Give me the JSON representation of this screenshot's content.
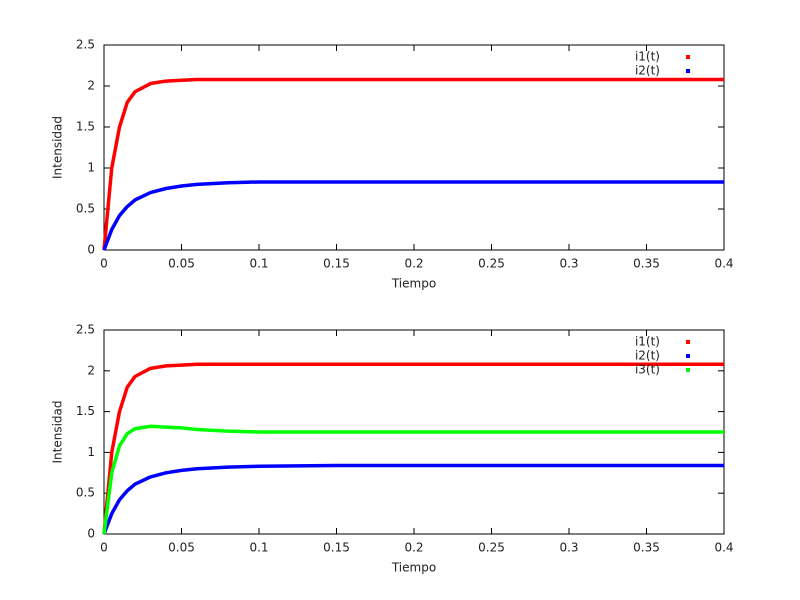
{
  "chart_data": [
    {
      "type": "line",
      "xlabel": "Tiempo",
      "ylabel": "Intensidad",
      "x": [
        0,
        0.005,
        0.01,
        0.015,
        0.02,
        0.03,
        0.04,
        0.05,
        0.06,
        0.08,
        0.1,
        0.15,
        0.2,
        0.3,
        0.4
      ],
      "series": [
        {
          "name": "i1(t)",
          "color": "#ff0000",
          "values": [
            0,
            1.0,
            1.5,
            1.8,
            1.93,
            2.03,
            2.06,
            2.07,
            2.08,
            2.08,
            2.08,
            2.08,
            2.08,
            2.08,
            2.08
          ]
        },
        {
          "name": "i2(t)",
          "color": "#0000ff",
          "values": [
            0,
            0.25,
            0.42,
            0.53,
            0.61,
            0.7,
            0.75,
            0.78,
            0.8,
            0.82,
            0.83,
            0.83,
            0.83,
            0.83,
            0.83
          ]
        }
      ],
      "xlim": [
        0,
        0.4
      ],
      "xticks": [
        0,
        0.05,
        0.1,
        0.15,
        0.2,
        0.25,
        0.3,
        0.35,
        0.4
      ],
      "ylim": [
        0,
        2.5
      ],
      "yticks": [
        0,
        0.5,
        1,
        1.5,
        2,
        2.5
      ],
      "grid": false,
      "legend": "top right"
    },
    {
      "type": "line",
      "xlabel": "Tiempo",
      "ylabel": "Intensidad",
      "x": [
        0,
        0.005,
        0.01,
        0.015,
        0.02,
        0.03,
        0.04,
        0.05,
        0.06,
        0.08,
        0.1,
        0.15,
        0.2,
        0.3,
        0.4
      ],
      "series": [
        {
          "name": "i1(t)",
          "color": "#ff0000",
          "values": [
            0,
            1.0,
            1.5,
            1.8,
            1.93,
            2.03,
            2.06,
            2.07,
            2.08,
            2.08,
            2.08,
            2.08,
            2.08,
            2.08,
            2.08
          ]
        },
        {
          "name": "i2(t)",
          "color": "#0000ff",
          "values": [
            0,
            0.25,
            0.42,
            0.53,
            0.61,
            0.7,
            0.75,
            0.78,
            0.8,
            0.82,
            0.83,
            0.84,
            0.84,
            0.84,
            0.84
          ]
        },
        {
          "name": "i3(t)",
          "color": "#00ff00",
          "values": [
            0,
            0.75,
            1.08,
            1.23,
            1.29,
            1.32,
            1.31,
            1.3,
            1.28,
            1.26,
            1.25,
            1.25,
            1.25,
            1.25,
            1.25
          ]
        }
      ],
      "xlim": [
        0,
        0.4
      ],
      "xticks": [
        0,
        0.05,
        0.1,
        0.15,
        0.2,
        0.25,
        0.3,
        0.35,
        0.4
      ],
      "ylim": [
        0,
        2.5
      ],
      "yticks": [
        0,
        0.5,
        1,
        1.5,
        2,
        2.5
      ],
      "grid": false,
      "legend": "top right"
    }
  ]
}
